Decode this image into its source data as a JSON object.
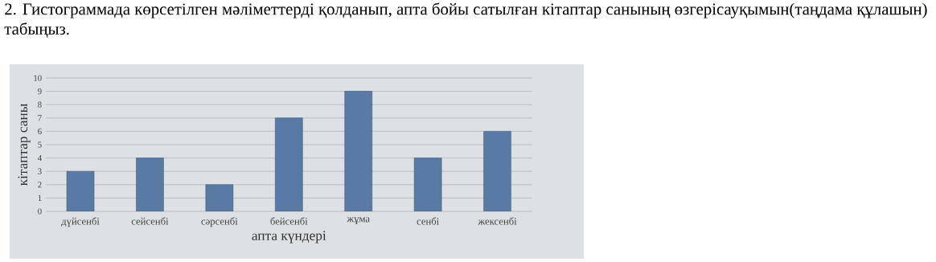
{
  "chart_data": {
    "type": "bar",
    "title": "2. Гистограммада көрсетілген мәліметтерді қолданып, апта бойы сатылған кітаптар санының өзгерісауқымын(таңдама құлашын) табыңыз.",
    "xlabel": "апта күндері",
    "ylabel": "кітаптар саны",
    "categories": [
      "дүйсенбі",
      "сейсенбі",
      "сәрсенбі",
      "бейсенбі",
      "жұма",
      "сенбі",
      "жексенбі"
    ],
    "values": [
      3,
      4,
      2,
      7,
      9,
      4,
      6
    ],
    "color": "#5a7aa6",
    "ylim": [
      0,
      10
    ],
    "yticks": [
      0,
      1,
      2,
      3,
      4,
      5,
      6,
      7,
      8,
      9,
      10
    ],
    "grid": "y"
  }
}
